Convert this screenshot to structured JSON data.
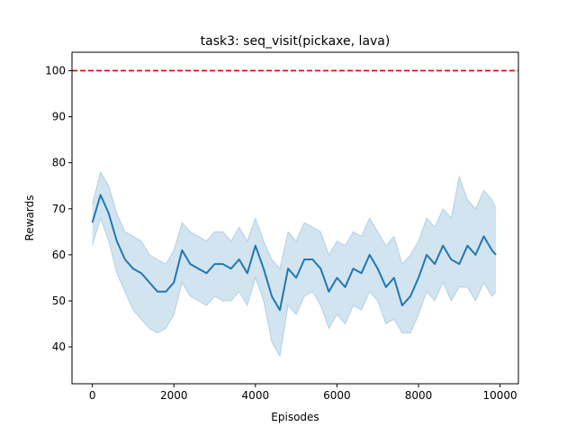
{
  "chart_data": {
    "type": "line",
    "title": "task3: seq_visit(pickaxe, lava)",
    "xlabel": "Episodes",
    "ylabel": "Rewards",
    "xlim": [
      -500,
      10450
    ],
    "ylim": [
      32,
      104
    ],
    "xticks": [
      0,
      2000,
      4000,
      6000,
      8000,
      10000
    ],
    "yticks": [
      40,
      50,
      60,
      70,
      80,
      90,
      100
    ],
    "grid": false,
    "legend": "none",
    "reference_line": {
      "y": 100,
      "color": "#dd0000",
      "style": "dashed"
    },
    "colors": {
      "line": "#1f77b4",
      "band": "#1f77b4",
      "band_opacity": 0.2,
      "band_edge_opacity": 0.25
    },
    "series": [
      {
        "x": [
          0,
          200,
          400,
          600,
          800,
          1000,
          1200,
          1400,
          1600,
          1800,
          2000,
          2200,
          2400,
          2600,
          2800,
          3000,
          3200,
          3400,
          3600,
          3800,
          4000,
          4200,
          4400,
          4600,
          4800,
          5000,
          5200,
          5400,
          5600,
          5800,
          6000,
          6200,
          6400,
          6600,
          6800,
          7000,
          7200,
          7400,
          7600,
          7800,
          8000,
          8200,
          8400,
          8600,
          8800,
          9000,
          9200,
          9400,
          9600,
          9800,
          9900
        ],
        "mean": [
          67,
          73,
          69,
          63,
          59,
          57,
          56,
          54,
          52,
          52,
          54,
          61,
          58,
          57,
          56,
          58,
          58,
          57,
          59,
          56,
          62,
          57,
          51,
          48,
          57,
          55,
          59,
          59,
          57,
          52,
          55,
          53,
          57,
          56,
          60,
          57,
          53,
          55,
          49,
          51,
          55,
          60,
          58,
          62,
          59,
          58,
          62,
          60,
          64,
          61,
          60
        ],
        "upper": [
          71,
          78,
          75,
          69,
          65,
          64,
          63,
          60,
          59,
          58,
          61,
          67,
          65,
          64,
          63,
          65,
          65,
          63,
          66,
          63,
          68,
          63,
          59,
          57,
          65,
          63,
          67,
          66,
          65,
          60,
          63,
          62,
          65,
          64,
          68,
          65,
          62,
          64,
          58,
          60,
          63,
          68,
          66,
          70,
          68,
          77,
          72,
          70,
          74,
          72,
          70
        ],
        "lower": [
          62,
          68,
          63,
          56,
          52,
          48,
          46,
          44,
          43,
          44,
          47,
          54,
          51,
          50,
          49,
          51,
          50,
          50,
          52,
          49,
          55,
          50,
          41,
          38,
          49,
          47,
          51,
          52,
          49,
          44,
          47,
          45,
          49,
          48,
          52,
          50,
          45,
          46,
          43,
          43,
          47,
          52,
          50,
          54,
          50,
          53,
          53,
          50,
          54,
          51,
          52
        ]
      }
    ]
  }
}
